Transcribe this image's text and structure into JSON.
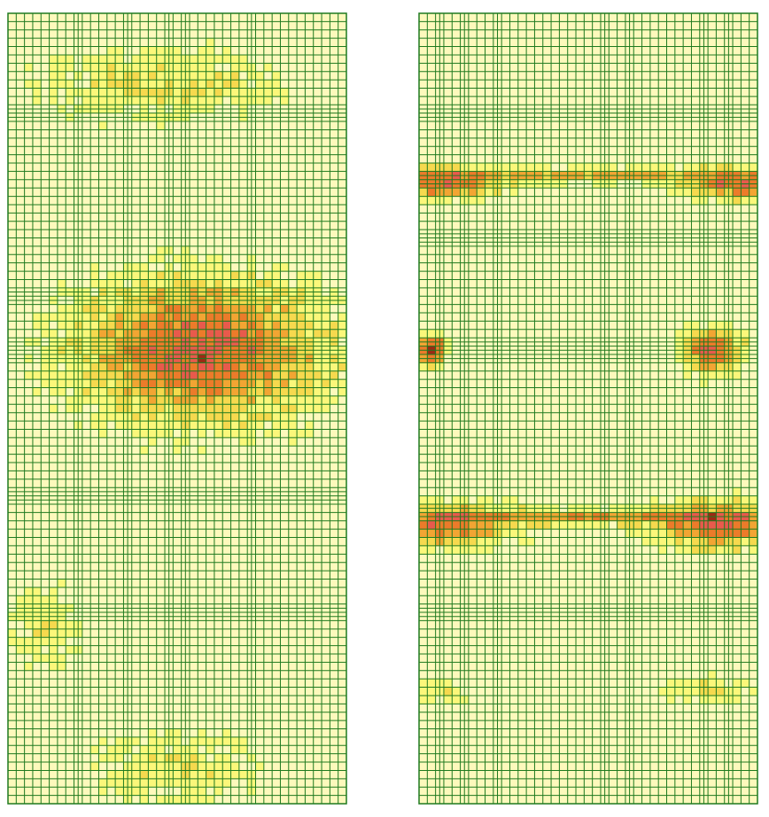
{
  "colors": {
    "background": "#ffffff",
    "base_fill": "#fdf9bc",
    "grid_line": "#1f7a1f",
    "levels": [
      "#fdf9bc",
      "#fbf77a",
      "#f6d94e",
      "#f2a533",
      "#ec7b2a",
      "#e85a4c",
      "#9b2a14"
    ]
  },
  "panels": [
    {
      "id": "left",
      "cols": 41,
      "rows": 95,
      "hot_zones": [
        {
          "cx": 23,
          "cy": 40,
          "rx": 16,
          "ry": 9,
          "peak": 5
        },
        {
          "cx": 18,
          "cy": 8,
          "rx": 16,
          "ry": 5,
          "peak": 1.6
        },
        {
          "cx": 4,
          "cy": 73,
          "rx": 5,
          "ry": 6,
          "peak": 1.3
        },
        {
          "cx": 20,
          "cy": 90,
          "rx": 12,
          "ry": 5,
          "peak": 1.2
        }
      ]
    },
    {
      "id": "right",
      "cols": 41,
      "rows": 95,
      "hot_zones": [
        {
          "cx": 2,
          "cy": 20,
          "rx": 8,
          "ry": 2,
          "peak": 4.5
        },
        {
          "cx": 38,
          "cy": 20,
          "rx": 7,
          "ry": 2,
          "peak": 4.5
        },
        {
          "cx": 20,
          "cy": 19,
          "rx": 20,
          "ry": 1,
          "peak": 3
        },
        {
          "cx": 1,
          "cy": 40,
          "rx": 2,
          "ry": 2,
          "peak": 6
        },
        {
          "cx": 35,
          "cy": 40,
          "rx": 4,
          "ry": 3,
          "peak": 5
        },
        {
          "cx": 3,
          "cy": 61,
          "rx": 9,
          "ry": 3,
          "peak": 4
        },
        {
          "cx": 36,
          "cy": 61,
          "rx": 9,
          "ry": 3,
          "peak": 4.5
        },
        {
          "cx": 20,
          "cy": 60,
          "rx": 20,
          "ry": 1,
          "peak": 3.2
        },
        {
          "cx": 35,
          "cy": 81,
          "rx": 6,
          "ry": 2,
          "peak": 1.4
        },
        {
          "cx": 2,
          "cy": 81,
          "rx": 4,
          "ry": 2,
          "peak": 1.3
        }
      ]
    }
  ]
}
